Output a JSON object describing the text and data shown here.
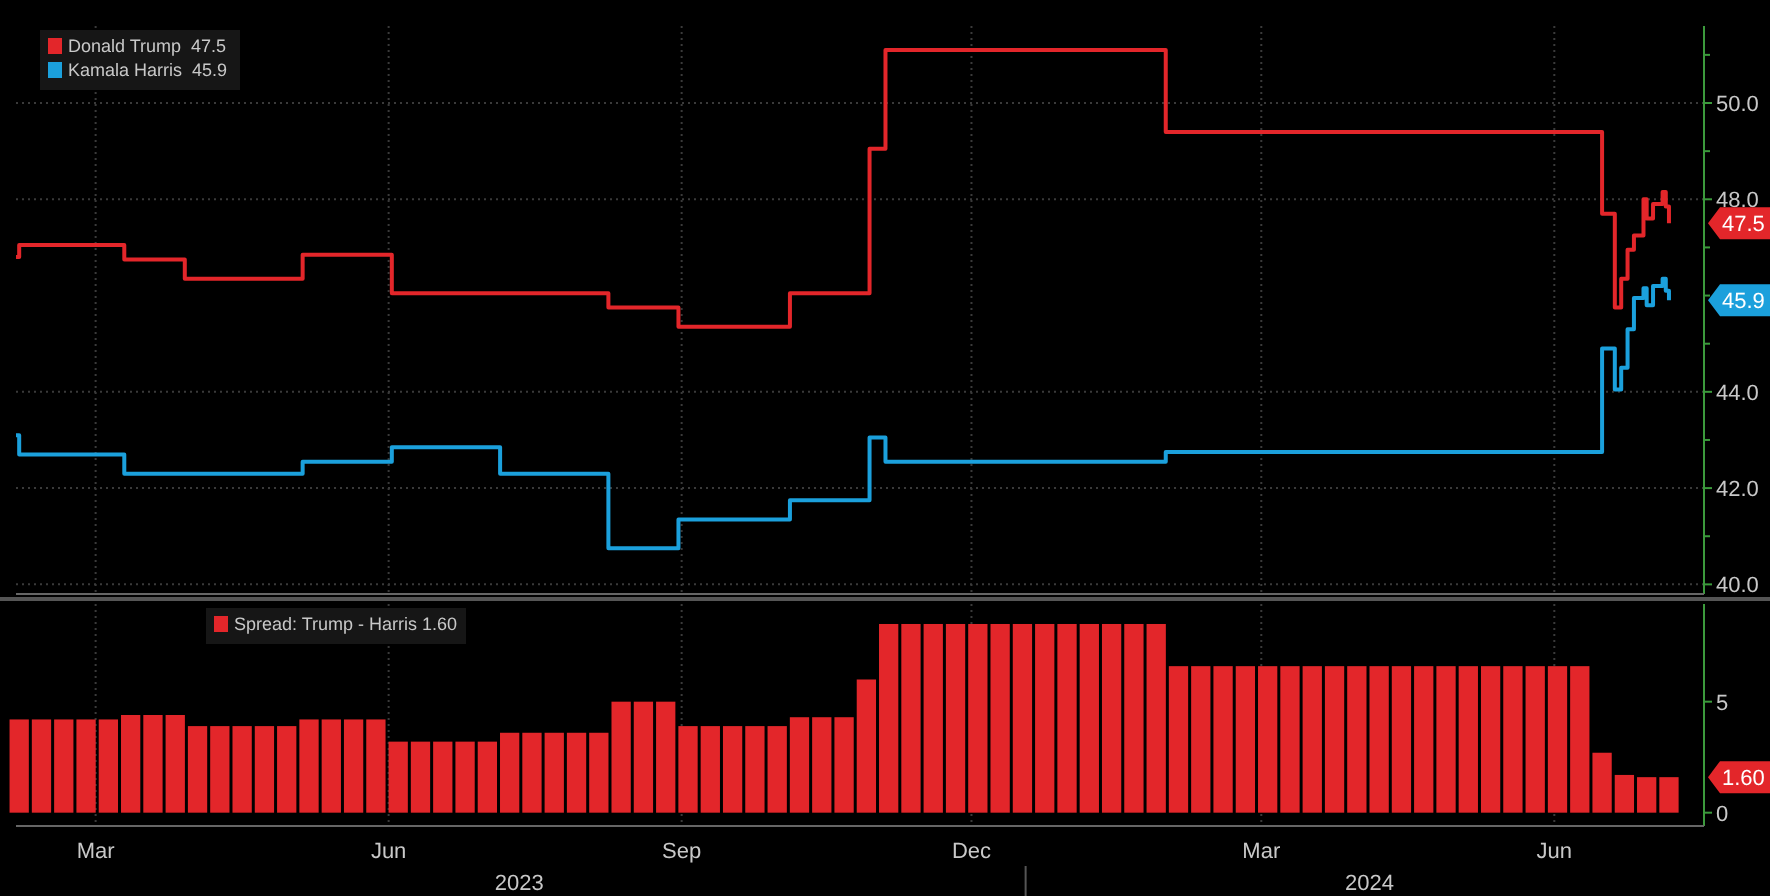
{
  "chart_data": [
    {
      "type": "step",
      "legend": "top left",
      "grid": true,
      "tick_labels": "y",
      "xlim": [
        "2023-02-18",
        "2024-08-01"
      ],
      "xticks": [
        {
          "value": "2023-03-15",
          "label": null
        },
        {
          "value": "2023-06-15",
          "label": null
        },
        {
          "value": "2023-09-15",
          "label": null
        },
        {
          "value": "2023-12-15",
          "label": null
        },
        {
          "value": "2024-03-15",
          "label": null
        },
        {
          "value": "2024-06-15",
          "label": null
        }
      ],
      "ylim": [
        39.8,
        51.6
      ],
      "yticks": [
        {
          "value": 40,
          "label": "40.0"
        },
        {
          "value": 41,
          "label": null
        },
        {
          "value": 42,
          "label": "42.0"
        },
        {
          "value": 43,
          "label": null
        },
        {
          "value": 44,
          "label": "44.0"
        },
        {
          "value": 45,
          "label": null
        },
        {
          "value": 46,
          "label": null
        },
        {
          "value": 47,
          "label": null
        },
        {
          "value": 48,
          "label": "48.0"
        },
        {
          "value": 49,
          "label": null
        },
        {
          "value": 50,
          "label": "50.0"
        },
        {
          "value": 51,
          "label": null
        }
      ],
      "annotations": [
        "47.5",
        "45.9"
      ],
      "series": [
        {
          "name": "Donald Trump  47.5",
          "color": "#e3262a",
          "x": [
            "2023-02-18",
            "2023-02-19",
            "2023-03-24",
            "2023-04-12",
            "2023-05-19",
            "2023-06-16",
            "2023-08-23",
            "2023-09-14",
            "2023-10-19",
            "2023-11-13",
            "2023-11-18",
            "2024-02-14",
            "2024-06-29",
            "2024-06-30",
            "2024-07-04",
            "2024-07-06",
            "2024-07-08",
            "2024-07-10",
            "2024-07-13",
            "2024-07-14",
            "2024-07-16",
            "2024-07-19",
            "2024-07-20",
            "2024-07-21"
          ],
          "values": [
            46.8,
            47.05,
            46.75,
            46.35,
            46.85,
            46.05,
            45.75,
            45.35,
            46.05,
            49.05,
            51.1,
            49.4,
            49.4,
            47.7,
            45.75,
            46.35,
            46.95,
            47.25,
            48.0,
            47.6,
            47.9,
            48.15,
            47.85,
            47.5
          ]
        },
        {
          "name": "Kamala Harris  45.9",
          "color": "#1ba0dc",
          "x": [
            "2023-02-18",
            "2023-02-19",
            "2023-03-24",
            "2023-05-19",
            "2023-06-16",
            "2023-07-20",
            "2023-08-23",
            "2023-09-14",
            "2023-10-19",
            "2023-11-13",
            "2023-11-18",
            "2024-02-14",
            "2024-06-29",
            "2024-06-30",
            "2024-07-04",
            "2024-07-06",
            "2024-07-08",
            "2024-07-10",
            "2024-07-13",
            "2024-07-14",
            "2024-07-16",
            "2024-07-19",
            "2024-07-20",
            "2024-07-21"
          ],
          "values": [
            43.1,
            42.7,
            42.3,
            42.55,
            42.85,
            42.3,
            40.75,
            41.35,
            41.75,
            43.05,
            42.55,
            42.75,
            42.75,
            44.9,
            44.05,
            44.5,
            45.3,
            45.95,
            46.15,
            45.8,
            46.2,
            46.35,
            46.1,
            45.9
          ]
        }
      ]
    },
    {
      "type": "bar",
      "legend": "top left",
      "grid": "x",
      "xlim": [
        "2023-02-18",
        "2024-08-01"
      ],
      "xticks": [
        {
          "value": "2023-03-15",
          "label": "Mar"
        },
        {
          "value": "2023-06-15",
          "label": "Jun"
        },
        {
          "value": "2023-09-15",
          "label": "Sep"
        },
        {
          "value": "2023-12-15",
          "label": "Dec"
        },
        {
          "value": "2024-03-15",
          "label": "Mar"
        },
        {
          "value": "2024-06-15",
          "label": "Jun"
        }
      ],
      "ylim": [
        -0.6,
        9.4
      ],
      "yticks": [
        0,
        5
      ],
      "x2lim": [
        "2023-02-18",
        "2024-08-01"
      ],
      "x2ticks": [
        {
          "value": "2023-07-26",
          "label": "2023"
        },
        {
          "value": "2024-04-18",
          "label": "2024"
        }
      ],
      "annotations": [
        "1.60"
      ],
      "series": [
        {
          "name": "Spread: Trump - Harris 1.60",
          "color": "#e3262a",
          "x": [
            "2023-02-19",
            "2023-02-26",
            "2023-03-05",
            "2023-03-12",
            "2023-03-19",
            "2023-03-26",
            "2023-04-02",
            "2023-04-09",
            "2023-04-16",
            "2023-04-23",
            "2023-04-30",
            "2023-05-07",
            "2023-05-14",
            "2023-05-21",
            "2023-05-28",
            "2023-06-04",
            "2023-06-11",
            "2023-06-18",
            "2023-06-25",
            "2023-07-02",
            "2023-07-09",
            "2023-07-16",
            "2023-07-23",
            "2023-07-30",
            "2023-08-06",
            "2023-08-13",
            "2023-08-20",
            "2023-08-27",
            "2023-09-03",
            "2023-09-10",
            "2023-09-17",
            "2023-09-24",
            "2023-10-01",
            "2023-10-08",
            "2023-10-15",
            "2023-10-22",
            "2023-10-29",
            "2023-11-05",
            "2023-11-12",
            "2023-11-19",
            "2023-11-26",
            "2023-12-03",
            "2023-12-10",
            "2023-12-17",
            "2023-12-24",
            "2023-12-31",
            "2024-01-07",
            "2024-01-14",
            "2024-01-21",
            "2024-01-28",
            "2024-02-04",
            "2024-02-11",
            "2024-02-18",
            "2024-02-25",
            "2024-03-03",
            "2024-03-10",
            "2024-03-17",
            "2024-03-24",
            "2024-03-31",
            "2024-04-07",
            "2024-04-14",
            "2024-04-21",
            "2024-04-28",
            "2024-05-05",
            "2024-05-12",
            "2024-05-19",
            "2024-05-26",
            "2024-06-02",
            "2024-06-09",
            "2024-06-16",
            "2024-06-23",
            "2024-06-30",
            "2024-07-07",
            "2024-07-14",
            "2024-07-21"
          ],
          "values": [
            4.2,
            4.2,
            4.2,
            4.2,
            4.2,
            4.4,
            4.4,
            4.4,
            3.9,
            3.9,
            3.9,
            3.9,
            3.9,
            4.2,
            4.2,
            4.2,
            4.2,
            3.2,
            3.2,
            3.2,
            3.2,
            3.2,
            3.6,
            3.6,
            3.6,
            3.6,
            3.6,
            5.0,
            5.0,
            5.0,
            3.9,
            3.9,
            3.9,
            3.9,
            3.9,
            4.3,
            4.3,
            4.3,
            6.0,
            8.5,
            8.5,
            8.5,
            8.5,
            8.5,
            8.5,
            8.5,
            8.5,
            8.5,
            8.5,
            8.5,
            8.5,
            8.5,
            6.6,
            6.6,
            6.6,
            6.6,
            6.6,
            6.6,
            6.6,
            6.6,
            6.6,
            6.6,
            6.6,
            6.6,
            6.6,
            6.6,
            6.6,
            6.6,
            6.6,
            6.6,
            6.6,
            2.7,
            1.7,
            1.6,
            1.6
          ]
        }
      ]
    }
  ]
}
